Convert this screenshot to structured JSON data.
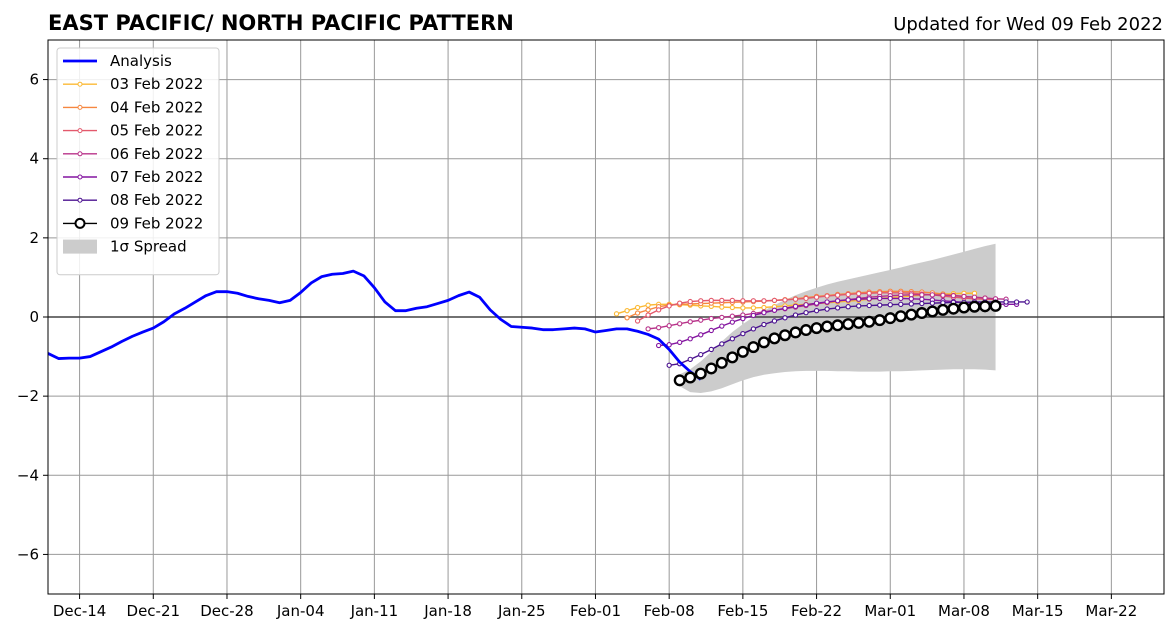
{
  "chart_data": {
    "type": "line",
    "title": "EAST PACIFIC/ NORTH PACIFIC PATTERN",
    "subtitle": "Updated for Wed 09 Feb 2022",
    "xlabel": "",
    "ylabel": "",
    "x_range": [
      "2021-12-11",
      "2022-03-27"
    ],
    "ylim": [
      -7,
      7
    ],
    "yticks": [
      -6,
      -4,
      -2,
      0,
      2,
      4,
      6
    ],
    "ytick_labels": [
      "−6",
      "−4",
      "−2",
      "0",
      "2",
      "4",
      "6"
    ],
    "xticks": [
      "2021-12-14",
      "2021-12-21",
      "2021-12-28",
      "2022-01-04",
      "2022-01-11",
      "2022-01-18",
      "2022-01-25",
      "2022-02-01",
      "2022-02-08",
      "2022-02-15",
      "2022-02-22",
      "2022-03-01",
      "2022-03-08",
      "2022-03-15",
      "2022-03-22"
    ],
    "xtick_labels": [
      "Dec-14",
      "Dec-21",
      "Dec-28",
      "Jan-04",
      "Jan-11",
      "Jan-18",
      "Jan-25",
      "Feb-01",
      "Feb-08",
      "Feb-15",
      "Feb-22",
      "Mar-01",
      "Mar-08",
      "Mar-15",
      "Mar-22"
    ],
    "grid": true,
    "legend_position": "top-left",
    "series": [
      {
        "name": "Analysis",
        "color": "#0000ff",
        "kind": "analysis",
        "start": "2021-12-11",
        "values": [
          -0.92,
          -1.05,
          -1.04,
          -1.04,
          -1.0,
          -0.88,
          -0.76,
          -0.62,
          -0.49,
          -0.38,
          -0.28,
          -0.12,
          0.08,
          0.22,
          0.38,
          0.54,
          0.64,
          0.64,
          0.6,
          0.52,
          0.46,
          0.42,
          0.36,
          0.42,
          0.62,
          0.86,
          1.02,
          1.08,
          1.1,
          1.16,
          1.04,
          0.74,
          0.38,
          0.16,
          0.16,
          0.22,
          0.26,
          0.34,
          0.42,
          0.54,
          0.63,
          0.5,
          0.18,
          -0.06,
          -0.24,
          -0.26,
          -0.28,
          -0.32,
          -0.32,
          -0.3,
          -0.28,
          -0.3,
          -0.38,
          -0.34,
          -0.3,
          -0.3,
          -0.36,
          -0.44,
          -0.56,
          -0.82,
          -1.14,
          -1.38,
          -1.58
        ]
      },
      {
        "name": "03 Feb 2022",
        "color": "#fbb934",
        "kind": "forecast",
        "start": "2022-02-03",
        "values": [
          0.08,
          0.16,
          0.24,
          0.3,
          0.32,
          0.32,
          0.31,
          0.3,
          0.28,
          0.27,
          0.25,
          0.24,
          0.23,
          0.23,
          0.24,
          0.26,
          0.28,
          0.3,
          0.32,
          0.34,
          0.36,
          0.38,
          0.4,
          0.42,
          0.45,
          0.47,
          0.49,
          0.51,
          0.53,
          0.55,
          0.57,
          0.58,
          0.59,
          0.6,
          0.6
        ]
      },
      {
        "name": "04 Feb 2022",
        "color": "#f68740",
        "kind": "forecast",
        "start": "2022-02-04",
        "values": [
          -0.02,
          0.1,
          0.18,
          0.26,
          0.3,
          0.32,
          0.33,
          0.34,
          0.35,
          0.36,
          0.37,
          0.38,
          0.39,
          0.4,
          0.42,
          0.44,
          0.46,
          0.49,
          0.52,
          0.54,
          0.57,
          0.59,
          0.61,
          0.63,
          0.64,
          0.65,
          0.65,
          0.64,
          0.63,
          0.61,
          0.58,
          0.55,
          0.52,
          0.5,
          0.48
        ]
      },
      {
        "name": "05 Feb 2022",
        "color": "#e3596c",
        "kind": "forecast",
        "start": "2022-02-05",
        "values": [
          -0.1,
          0.05,
          0.18,
          0.28,
          0.35,
          0.39,
          0.41,
          0.42,
          0.42,
          0.42,
          0.41,
          0.41,
          0.41,
          0.42,
          0.43,
          0.45,
          0.47,
          0.5,
          0.53,
          0.55,
          0.57,
          0.59,
          0.6,
          0.61,
          0.61,
          0.61,
          0.6,
          0.58,
          0.56,
          0.53,
          0.5,
          0.48,
          0.46,
          0.45,
          0.44
        ]
      },
      {
        "name": "06 Feb 2022",
        "color": "#b8338a",
        "kind": "forecast",
        "start": "2022-02-06",
        "values": [
          -0.3,
          -0.27,
          -0.22,
          -0.17,
          -0.12,
          -0.08,
          -0.04,
          -0.01,
          0.02,
          0.05,
          0.09,
          0.13,
          0.17,
          0.21,
          0.25,
          0.29,
          0.33,
          0.37,
          0.41,
          0.44,
          0.47,
          0.5,
          0.52,
          0.54,
          0.55,
          0.56,
          0.56,
          0.56,
          0.55,
          0.54,
          0.52,
          0.5,
          0.48,
          0.46,
          0.45
        ]
      },
      {
        "name": "07 Feb 2022",
        "color": "#8415a0",
        "kind": "forecast",
        "start": "2022-02-07",
        "values": [
          -0.72,
          -0.7,
          -0.64,
          -0.55,
          -0.45,
          -0.34,
          -0.23,
          -0.13,
          -0.04,
          0.04,
          0.11,
          0.17,
          0.22,
          0.27,
          0.31,
          0.35,
          0.38,
          0.41,
          0.43,
          0.45,
          0.46,
          0.47,
          0.47,
          0.47,
          0.46,
          0.45,
          0.43,
          0.41,
          0.39,
          0.37,
          0.35,
          0.34,
          0.33,
          0.32,
          0.32
        ]
      },
      {
        "name": "08 Feb 2022",
        "color": "#4b1290",
        "kind": "forecast",
        "start": "2022-02-08",
        "values": [
          -1.22,
          -1.18,
          -1.07,
          -0.95,
          -0.82,
          -0.68,
          -0.55,
          -0.42,
          -0.3,
          -0.19,
          -0.1,
          -0.02,
          0.05,
          0.11,
          0.16,
          0.2,
          0.23,
          0.26,
          0.28,
          0.29,
          0.3,
          0.31,
          0.32,
          0.33,
          0.34,
          0.35,
          0.36,
          0.37,
          0.37,
          0.38,
          0.38,
          0.38,
          0.38,
          0.38,
          0.38
        ]
      },
      {
        "name": "09 Feb 2022",
        "color": "#000000",
        "kind": "latest",
        "start": "2022-02-09",
        "values": [
          -1.6,
          -1.53,
          -1.43,
          -1.3,
          -1.16,
          -1.02,
          -0.88,
          -0.76,
          -0.64,
          -0.54,
          -0.46,
          -0.39,
          -0.33,
          -0.28,
          -0.24,
          -0.21,
          -0.18,
          -0.15,
          -0.12,
          -0.08,
          -0.03,
          0.02,
          0.06,
          0.1,
          0.14,
          0.18,
          0.21,
          0.24,
          0.26,
          0.27,
          0.28
        ]
      }
    ],
    "spread": {
      "name": "1σ Spread",
      "color": "#cccccc",
      "start": "2022-02-09",
      "upper": [
        -1.45,
        -1.32,
        -1.12,
        -0.88,
        -0.62,
        -0.38,
        -0.18,
        -0.0,
        0.16,
        0.3,
        0.43,
        0.55,
        0.65,
        0.74,
        0.82,
        0.89,
        0.95,
        1.01,
        1.07,
        1.13,
        1.19,
        1.25,
        1.32,
        1.38,
        1.44,
        1.51,
        1.58,
        1.65,
        1.72,
        1.79,
        1.85
      ],
      "lower": [
        -1.75,
        -1.9,
        -1.92,
        -1.88,
        -1.8,
        -1.7,
        -1.6,
        -1.52,
        -1.46,
        -1.42,
        -1.39,
        -1.37,
        -1.36,
        -1.36,
        -1.36,
        -1.37,
        -1.37,
        -1.38,
        -1.38,
        -1.38,
        -1.37,
        -1.37,
        -1.36,
        -1.35,
        -1.34,
        -1.33,
        -1.32,
        -1.32,
        -1.32,
        -1.33,
        -1.35
      ]
    }
  }
}
